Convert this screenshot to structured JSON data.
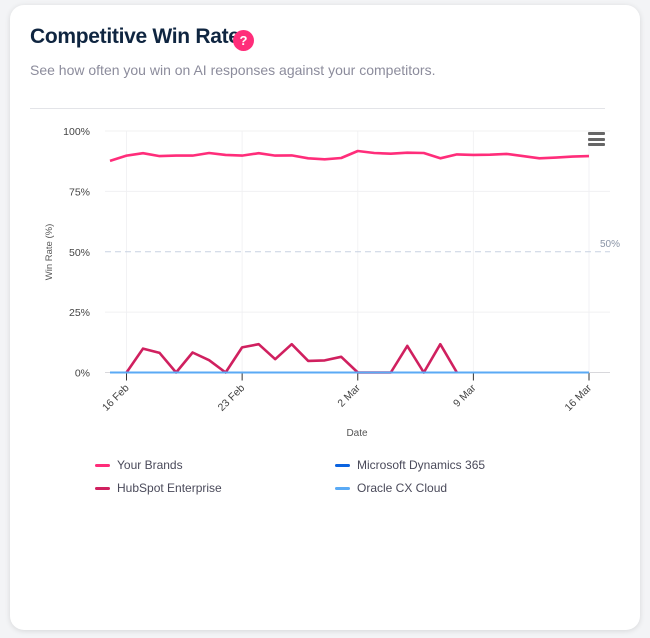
{
  "header": {
    "title": "Competitive Win Rate",
    "help_icon": "?",
    "subtitle": "See how often you win on AI responses against your competitors."
  },
  "chart_data": {
    "type": "line",
    "title": "Competitive Win Rate",
    "xlabel": "Date",
    "ylabel": "Win Rate (%)",
    "ylim": [
      0,
      100
    ],
    "yticks": [
      "0%",
      "25%",
      "50%",
      "75%",
      "100%"
    ],
    "ytick_values": [
      0,
      25,
      50,
      75,
      100
    ],
    "reference_line": {
      "value": 50,
      "label": "50%"
    },
    "x": [
      "15 Feb",
      "16 Feb",
      "17 Feb",
      "18 Feb",
      "19 Feb",
      "20 Feb",
      "21 Feb",
      "22 Feb",
      "23 Feb",
      "24 Feb",
      "25 Feb",
      "26 Feb",
      "27 Feb",
      "28 Feb",
      "1 Mar",
      "2 Mar",
      "3 Mar",
      "4 Mar",
      "5 Mar",
      "6 Mar",
      "7 Mar",
      "8 Mar",
      "9 Mar",
      "10 Mar",
      "11 Mar",
      "12 Mar",
      "13 Mar",
      "14 Mar",
      "15 Mar",
      "16 Mar"
    ],
    "xticks": [
      "16 Feb",
      "23 Feb",
      "2 Mar",
      "9 Mar",
      "16 Mar"
    ],
    "legend_position": "bottom",
    "series": [
      {
        "name": "Your Brands",
        "color": "#ff2d7a",
        "values": [
          87.6,
          89.8,
          90.8,
          89.6,
          89.8,
          89.8,
          90.9,
          90.1,
          89.8,
          90.8,
          89.8,
          89.9,
          88.7,
          88.3,
          88.8,
          91.7,
          90.9,
          90.6,
          91.0,
          90.9,
          88.7,
          90.3,
          90.1,
          90.2,
          90.5,
          89.6,
          88.7,
          89.0,
          89.4,
          89.6
        ]
      },
      {
        "name": "HubSpot Enterprise",
        "color": "#d0205f",
        "values": [
          null,
          0,
          9.9,
          8.1,
          0,
          8.3,
          5.1,
          0,
          10.4,
          11.7,
          5.5,
          11.7,
          4.8,
          5.0,
          6.5,
          0,
          0,
          0,
          11.0,
          0,
          11.7,
          0,
          null,
          null,
          null,
          null,
          null,
          null,
          null,
          null
        ]
      },
      {
        "name": "Microsoft Dynamics 365",
        "color": "#0b63e0",
        "values": [
          0,
          0,
          0,
          0,
          0,
          0,
          0,
          0,
          0,
          0,
          0,
          0,
          0,
          0,
          0,
          0,
          0,
          0,
          0,
          0,
          0,
          0,
          0,
          0,
          0,
          0,
          0,
          0,
          0,
          0
        ]
      },
      {
        "name": "Oracle CX Cloud",
        "color": "#5aaaf5",
        "values": [
          0,
          0,
          0,
          0,
          0,
          0,
          0,
          0,
          0,
          0,
          0,
          0,
          0,
          0,
          0,
          0,
          0,
          0,
          0,
          0,
          0,
          0,
          0,
          0,
          0,
          0,
          0,
          0,
          0,
          0
        ]
      }
    ]
  }
}
